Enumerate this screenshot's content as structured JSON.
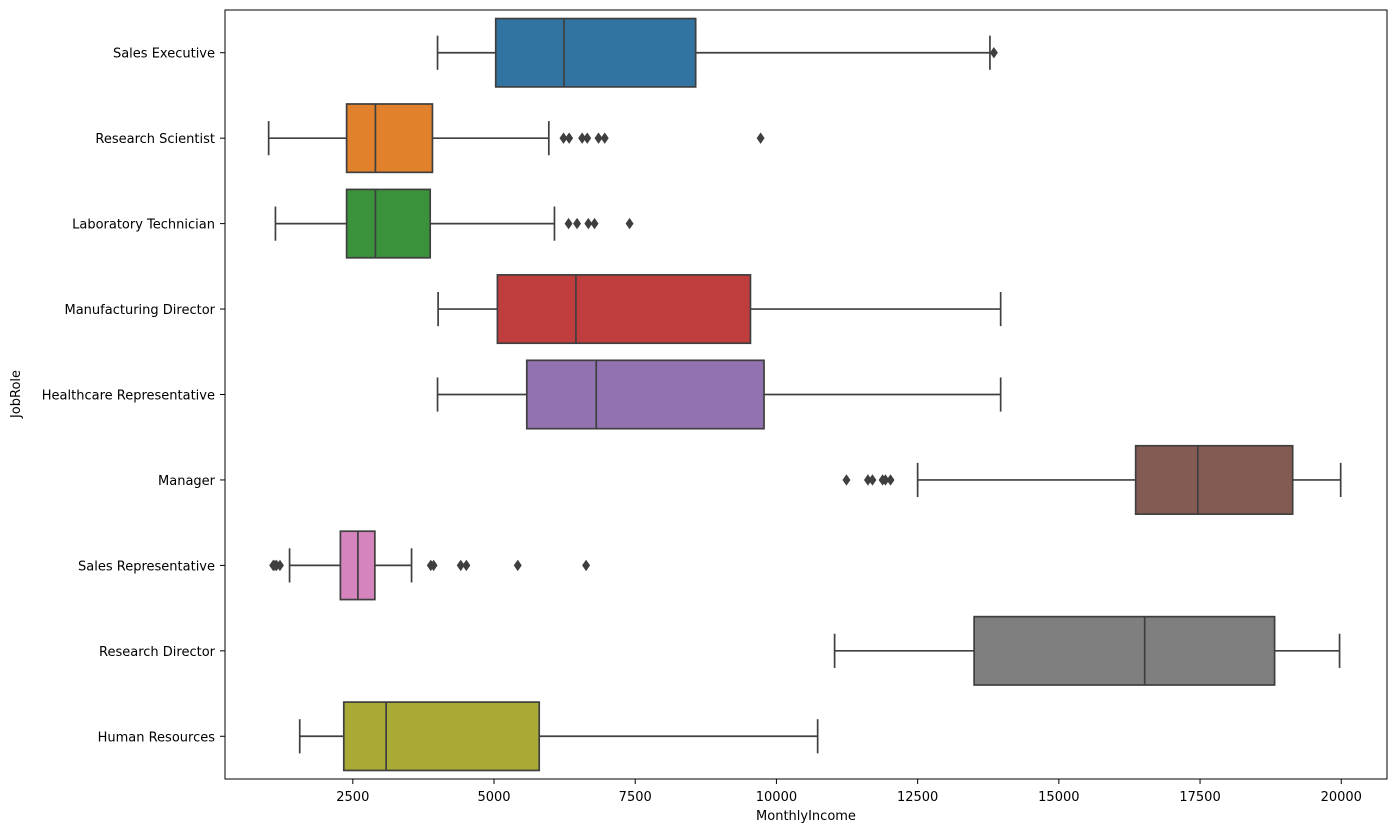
{
  "chart_data": {
    "type": "box",
    "orientation": "horizontal",
    "title": "",
    "xlabel": "MonthlyIncome",
    "ylabel": "JobRole",
    "xlim": [
      237,
      20810
    ],
    "xticks": [
      2500,
      5000,
      7500,
      10000,
      12500,
      15000,
      17500,
      20000
    ],
    "xtick_labels": [
      "2500",
      "5000",
      "7500",
      "10000",
      "12500",
      "15000",
      "17500",
      "20000"
    ],
    "grid": false,
    "categories": [
      {
        "name": "Sales Executive",
        "color": "#3274a1",
        "whisker_low": 4000,
        "q1": 5030,
        "median": 6240,
        "q3": 8570,
        "whisker_high": 13780,
        "outliers": [
          13850
        ]
      },
      {
        "name": "Research Scientist",
        "color": "#e1812c",
        "whisker_low": 1010,
        "q1": 2390,
        "median": 2900,
        "q3": 3910,
        "whisker_high": 5970,
        "outliers": [
          6230,
          6330,
          6560,
          6650,
          6850,
          6960,
          9720
        ]
      },
      {
        "name": "Laboratory Technician",
        "color": "#3a923a",
        "whisker_low": 1130,
        "q1": 2390,
        "median": 2900,
        "q3": 3870,
        "whisker_high": 6070,
        "outliers": [
          6320,
          6470,
          6670,
          6780,
          7400
        ]
      },
      {
        "name": "Manufacturing Director",
        "color": "#c03d3e",
        "whisker_low": 4010,
        "q1": 5060,
        "median": 6450,
        "q3": 9540,
        "whisker_high": 13970,
        "outliers": []
      },
      {
        "name": "Healthcare Representative",
        "color": "#9372b2",
        "whisker_low": 4000,
        "q1": 5580,
        "median": 6810,
        "q3": 9780,
        "whisker_high": 13970,
        "outliers": []
      },
      {
        "name": "Manager",
        "color": "#845b53",
        "whisker_low": 12500,
        "q1": 16360,
        "median": 17460,
        "q3": 19140,
        "whisker_high": 19990,
        "outliers": [
          11240,
          11620,
          11700,
          11880,
          11930,
          12020
        ]
      },
      {
        "name": "Sales Representative",
        "color": "#d684bd",
        "whisker_low": 1380,
        "q1": 2280,
        "median": 2590,
        "q3": 2890,
        "whisker_high": 3540,
        "outliers": [
          1090,
          1120,
          1150,
          1210,
          3880,
          3930,
          4410,
          4510,
          5420,
          6630
        ]
      },
      {
        "name": "Research Director",
        "color": "#7f7f7f",
        "whisker_low": 11030,
        "q1": 13500,
        "median": 16520,
        "q3": 18820,
        "whisker_high": 19970,
        "outliers": []
      },
      {
        "name": "Human Resources",
        "color": "#a9aa35",
        "whisker_low": 1560,
        "q1": 2340,
        "median": 3090,
        "q3": 5800,
        "whisker_high": 10730,
        "outliers": []
      }
    ]
  }
}
